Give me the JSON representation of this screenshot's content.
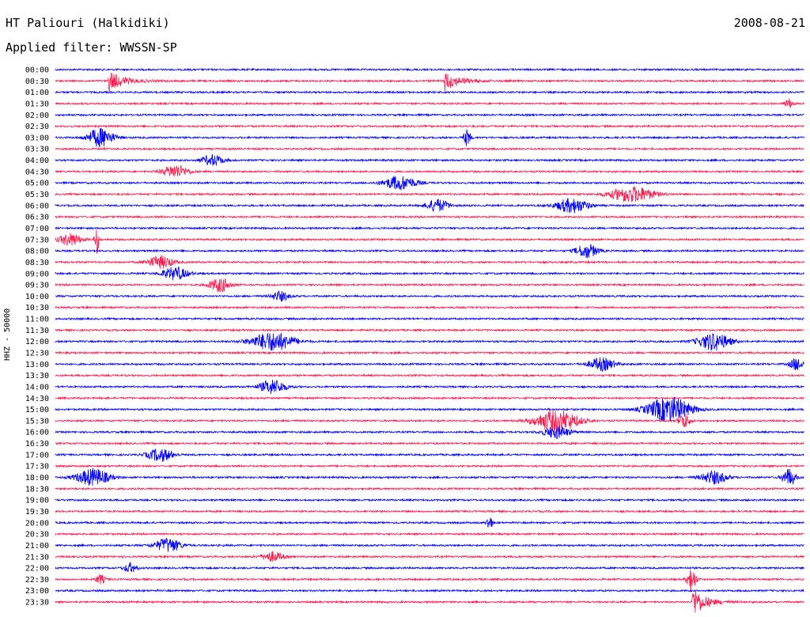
{
  "header": {
    "station": "HT Paliouri (Halkidiki)",
    "filter": "Applied filter: WWSSN-SP",
    "date": "2008-08-21"
  },
  "chart_data": {
    "type": "line",
    "title": "HT Paliouri (Halkidiki)",
    "subtitle": "Applied filter: WWSSN-SP",
    "ylabel": "HHZ - 50000",
    "xlabel": "",
    "colors": {
      "even_row": "#0000ff",
      "odd_row": "#ff1a4d"
    },
    "rows": [
      "00:00",
      "00:30",
      "01:00",
      "01:30",
      "02:00",
      "02:30",
      "03:00",
      "03:30",
      "04:00",
      "04:30",
      "05:00",
      "05:30",
      "06:00",
      "06:30",
      "07:00",
      "07:30",
      "08:00",
      "08:30",
      "09:00",
      "09:30",
      "10:00",
      "10:30",
      "11:00",
      "11:30",
      "12:00",
      "12:30",
      "13:00",
      "13:30",
      "14:00",
      "14:30",
      "15:00",
      "15:30",
      "16:00",
      "16:30",
      "17:00",
      "17:30",
      "18:00",
      "18:30",
      "19:00",
      "19:30",
      "20:00",
      "20:30",
      "21:00",
      "21:30",
      "22:00",
      "22:30",
      "23:00",
      "23:30"
    ],
    "events": [
      {
        "row": "00:30",
        "x": 0.07,
        "amp": 14,
        "width": 0.012,
        "onset": true
      },
      {
        "row": "00:30",
        "x": 0.52,
        "amp": 12,
        "width": 0.012,
        "onset": true
      },
      {
        "row": "01:30",
        "x": 0.98,
        "amp": 6,
        "width": 0.004
      },
      {
        "row": "03:00",
        "x": 0.06,
        "amp": 12,
        "width": 0.012
      },
      {
        "row": "03:00",
        "x": 0.55,
        "amp": 11,
        "width": 0.003
      },
      {
        "row": "04:30",
        "x": 0.16,
        "amp": 8,
        "width": 0.012
      },
      {
        "row": "04:00",
        "x": 0.21,
        "amp": 7,
        "width": 0.01
      },
      {
        "row": "05:00",
        "x": 0.46,
        "amp": 9,
        "width": 0.015
      },
      {
        "row": "05:30",
        "x": 0.77,
        "amp": 10,
        "width": 0.02
      },
      {
        "row": "06:00",
        "x": 0.51,
        "amp": 8,
        "width": 0.01
      },
      {
        "row": "06:00",
        "x": 0.69,
        "amp": 9,
        "width": 0.015
      },
      {
        "row": "07:30",
        "x": 0.02,
        "amp": 8,
        "width": 0.01
      },
      {
        "row": "07:30",
        "x": 0.055,
        "amp": 18,
        "width": 0.002
      },
      {
        "row": "08:00",
        "x": 0.71,
        "amp": 9,
        "width": 0.01
      },
      {
        "row": "08:30",
        "x": 0.14,
        "amp": 8,
        "width": 0.012
      },
      {
        "row": "09:00",
        "x": 0.16,
        "amp": 8,
        "width": 0.012
      },
      {
        "row": "09:30",
        "x": 0.22,
        "amp": 9,
        "width": 0.01
      },
      {
        "row": "10:00",
        "x": 0.3,
        "amp": 6,
        "width": 0.008
      },
      {
        "row": "12:00",
        "x": 0.29,
        "amp": 12,
        "width": 0.02
      },
      {
        "row": "12:00",
        "x": 0.88,
        "amp": 11,
        "width": 0.015
      },
      {
        "row": "13:00",
        "x": 0.73,
        "amp": 8,
        "width": 0.012
      },
      {
        "row": "13:00",
        "x": 0.99,
        "amp": 8,
        "width": 0.006
      },
      {
        "row": "14:00",
        "x": 0.29,
        "amp": 9,
        "width": 0.012
      },
      {
        "row": "15:00",
        "x": 0.82,
        "amp": 16,
        "width": 0.02
      },
      {
        "row": "15:30",
        "x": 0.67,
        "amp": 14,
        "width": 0.02
      },
      {
        "row": "15:30",
        "x": 0.84,
        "amp": 10,
        "width": 0.005
      },
      {
        "row": "16:00",
        "x": 0.67,
        "amp": 8,
        "width": 0.012
      },
      {
        "row": "17:00",
        "x": 0.14,
        "amp": 8,
        "width": 0.012
      },
      {
        "row": "18:00",
        "x": 0.05,
        "amp": 11,
        "width": 0.015
      },
      {
        "row": "18:00",
        "x": 0.88,
        "amp": 8,
        "width": 0.012
      },
      {
        "row": "18:00",
        "x": 0.98,
        "amp": 11,
        "width": 0.006
      },
      {
        "row": "20:00",
        "x": 0.58,
        "amp": 8,
        "width": 0.003
      },
      {
        "row": "21:00",
        "x": 0.15,
        "amp": 9,
        "width": 0.012
      },
      {
        "row": "21:30",
        "x": 0.29,
        "amp": 6,
        "width": 0.01
      },
      {
        "row": "22:00",
        "x": 0.1,
        "amp": 6,
        "width": 0.006
      },
      {
        "row": "22:30",
        "x": 0.06,
        "amp": 6,
        "width": 0.004
      },
      {
        "row": "23:30",
        "x": 0.85,
        "amp": 22,
        "width": 0.01,
        "onset": true
      },
      {
        "row": "22:30",
        "x": 0.85,
        "amp": 16,
        "width": 0.004
      }
    ]
  }
}
